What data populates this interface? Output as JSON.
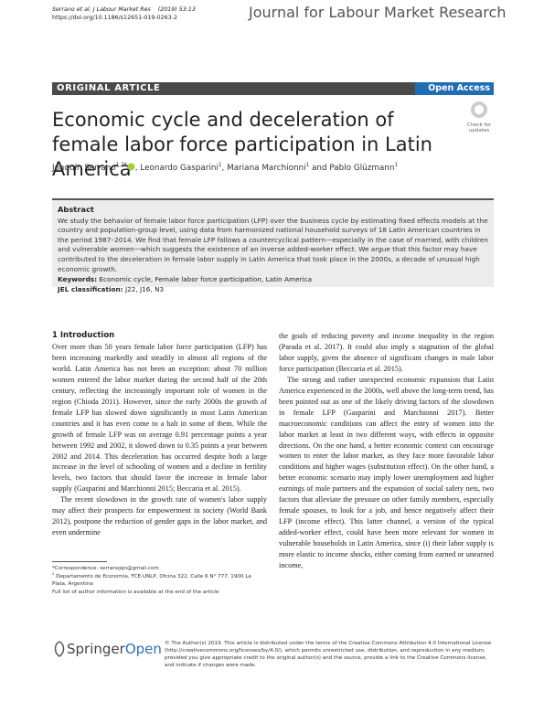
{
  "header": {
    "citation": "Serrano et al. J Labour Market Res",
    "volume": "(2019) 53:13",
    "doi": "https://doi.org/10.1186/s12651-019-0263-2",
    "journal": "Journal for Labour Market Research"
  },
  "banner": {
    "article_type": "ORIGINAL ARTICLE",
    "access": "Open Access"
  },
  "badge": "Check for updates",
  "title": "Economic cycle and deceleration of female labor force participation in Latin America",
  "authors": [
    {
      "name": "Joaquín Serrano",
      "sup": "1,2*"
    },
    {
      "name": "Leonardo Gasparini",
      "sup": "1"
    },
    {
      "name": "Mariana Marchionni",
      "sup": "1"
    },
    {
      "name": "Pablo Glüzmann",
      "sup": "1"
    }
  ],
  "author_connectors": [
    ", ",
    ", ",
    " and "
  ],
  "abstract": {
    "heading": "Abstract",
    "text": "We study the behavior of female labor force participation (LFP) over the business cycle by estimating fixed effects models at the country and population-group level, using data from harmonized national household surveys of 18 Latin American countries in the period 1987–2014. We find that female LFP follows a countercyclical pattern—especially in the case of married, with children and vulnerable women—which suggests the existence of an inverse added-worker effect. We argue that this factor may have contributed to the deceleration in female labor supply in Latin America that took place in the 2000s, a decade of unusual high economic growth.",
    "keywords_label": "Keywords:",
    "keywords": "Economic cycle, Female labor force participation, Latin America",
    "jel_label": "JEL classification:",
    "jel": "J22, J16, N3"
  },
  "body": {
    "section": "1 Introduction",
    "left": [
      "Over more than 50 years female labor force participation (LFP) has been increasing markedly and steadily in almost all regions of the world. Latin America has not been an exception: about 70 million women entered the labor market during the second half of the 20th century, reflecting the increasingly important role of women in the region (Chioda 2011). However, since the early 2000s the growth of female LFP has slowed down significantly in most Latin American countries and it has even come to a halt in some of them. While the growth of female LFP was on average 0.91 percentage points a year between 1992 and 2002, it slowed down to 0.35 points a year between 2002 and 2014. This deceleration has occurred despite both a large increase in the level of schooling of women and a decline in fertility levels, two factors that should favor the increase in female labor supply (Gasparini and Marchionni 2015; Beccaria et al. 2015).",
      "The recent slowdown in the growth rate of women's labor supply may affect their prospects for empowerment in society (World Bank 2012), postpone the reduction of gender gaps in the labor market, and even undermine"
    ],
    "right": [
      "the goals of reducing poverty and income inequality in the region (Parada et al. 2017). It could also imply a stagnation of the global labor supply, given the absence of significant changes in male labor force participation (Beccaria et al. 2015).",
      "The strong and rather unexpected economic expansion that Latin America experienced in the 2000s, well above the long-term trend, has been pointed out as one of the likely driving factors of the slowdown in female LFP (Gasparini and Marchionni 2017). Better macroeconomic conditions can affect the entry of women into the labor market at least in two different ways, with effects in opposite directions. On the one hand, a better economic context can encourage women to enter the labor market, as they face more favorable labor conditions and higher wages (substitution effect). On the other hand, a better economic scenario may imply lower unemployment and higher earnings of male partners and the expansion of social safety nets, two factors that alleviate the pressure on other family members, especially female spouses, to look for a job, and hence negatively affect their LFP (income effect). This latter channel, a version of the typical added-worker effect, could have been more relevant for women in vulnerable households in Latin America, since (i) their labor supply is more elastic to income shocks, either coming from earned or unearned income,"
    ]
  },
  "footnotes": {
    "correspondence": "*Correspondence: serranojqn@gmail.com",
    "affil_mark": "2",
    "affiliation": "Departamento de Economía, FCE-UNLP, Ofcina 322, Calle 6 N° 777, 1900 La Plata, Argentina",
    "more": "Full list of author information is available at the end of the article"
  },
  "footer": {
    "brand": "Springer",
    "brand_suffix": "Open",
    "license": "© The Author(s) 2019. This article is distributed under the terms of the Creative Commons Attribution 4.0 International License (http://creativecommons.org/licenses/by/4.0/), which permits unrestricted use, distribution, and reproduction in any medium, provided you give appropriate credit to the original author(s) and the source, provide a link to the Creative Commons license, and indicate if changes were made."
  }
}
